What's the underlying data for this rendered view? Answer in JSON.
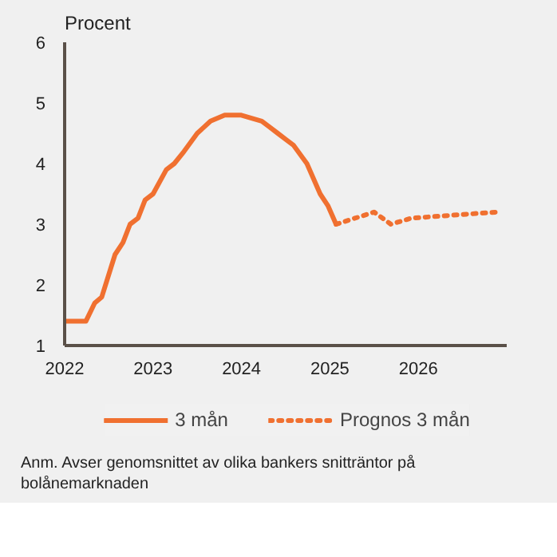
{
  "chart_data": {
    "type": "line",
    "ylabel": "Procent",
    "xlim": [
      2022,
      2027
    ],
    "xticks": [
      2022,
      2023,
      2024,
      2025,
      2026
    ],
    "ylim": [
      1,
      6
    ],
    "yticks": [
      1,
      2,
      3,
      4,
      5,
      6
    ],
    "grid": false,
    "legend": "bottom",
    "marker": "none",
    "series": [
      {
        "name": "3 mån",
        "color": "#f07030",
        "line_style": "solid",
        "x": [
          2022.0,
          2022.24,
          2022.34,
          2022.42,
          2022.57,
          2022.66,
          2022.74,
          2022.83,
          2022.91,
          2023.0,
          2023.15,
          2023.24,
          2023.35,
          2023.5,
          2023.65,
          2023.81,
          2023.99,
          2024.23,
          2024.32,
          2024.41,
          2024.5,
          2024.59,
          2024.74,
          2024.89,
          2024.98,
          2025.07
        ],
        "values": [
          1.4,
          1.4,
          1.7,
          1.8,
          2.5,
          2.7,
          3.0,
          3.1,
          3.4,
          3.5,
          3.9,
          4.0,
          4.2,
          4.5,
          4.7,
          4.8,
          4.8,
          4.7,
          4.6,
          4.5,
          4.4,
          4.3,
          4.0,
          3.5,
          3.3,
          3.0
        ]
      },
      {
        "name": "Prognos 3 mån",
        "color": "#f07030",
        "line_style": "dotted",
        "x": [
          2025.07,
          2025.5,
          2025.69,
          2025.92,
          2026.88
        ],
        "values": [
          3.0,
          3.2,
          3.0,
          3.1,
          3.2
        ]
      }
    ],
    "annotations": [
      "Anm. Avser genomsnittet av olika bankers snitträntor på bolånemarknaden"
    ]
  }
}
